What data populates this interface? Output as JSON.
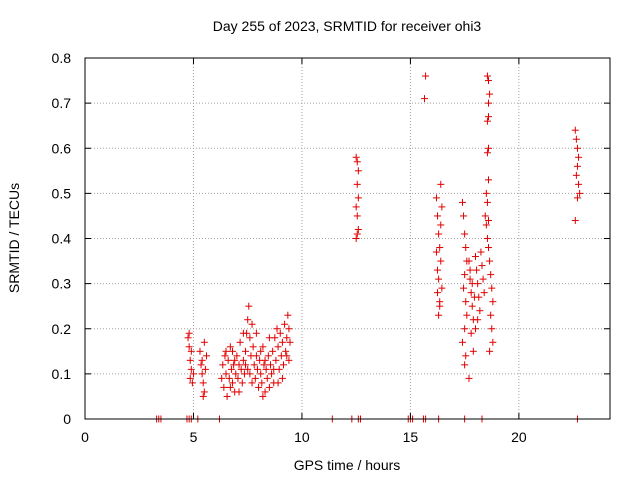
{
  "chart_data": {
    "type": "scatter",
    "title": "Day 255 of 2023, SRMTID for receiver ohi3",
    "xlabel": "GPS time / hours",
    "ylabel": "SRMTID / TECUs",
    "xlim": [
      0,
      24.2
    ],
    "ylim": [
      0,
      0.8
    ],
    "xticks": [
      0,
      5,
      10,
      15,
      20
    ],
    "xtick_labels": [
      "0",
      "5",
      "10",
      "15",
      "20"
    ],
    "yticks": [
      0,
      0.1,
      0.2,
      0.3,
      0.4,
      0.5,
      0.6,
      0.7,
      0.8
    ],
    "ytick_labels": [
      "0",
      "0.1",
      "0.2",
      "0.3",
      "0.4",
      "0.5",
      "0.6",
      "0.7",
      "0.8"
    ],
    "grid": true,
    "marker": "+",
    "color": "#e00000",
    "series": [
      {
        "name": "SRMTID",
        "points": [
          [
            3.3,
            0
          ],
          [
            3.4,
            0
          ],
          [
            3.5,
            0
          ],
          [
            4.7,
            0
          ],
          [
            4.8,
            0
          ],
          [
            4.9,
            0
          ],
          [
            5.2,
            0
          ],
          [
            6.2,
            0
          ],
          [
            11.4,
            0
          ],
          [
            12.3,
            0
          ],
          [
            12.6,
            0
          ],
          [
            12.7,
            0
          ],
          [
            14.9,
            0
          ],
          [
            15.0,
            0
          ],
          [
            15.1,
            0
          ],
          [
            15.6,
            0
          ],
          [
            15.7,
            0
          ],
          [
            16.3,
            0
          ],
          [
            17.5,
            0
          ],
          [
            18.3,
            0
          ],
          [
            22.7,
            0
          ],
          [
            4.8,
            0.19
          ],
          [
            4.8,
            0.16
          ],
          [
            4.85,
            0.13
          ],
          [
            4.9,
            0.15
          ],
          [
            4.9,
            0.11
          ],
          [
            4.95,
            0.08
          ],
          [
            5.0,
            0.1
          ],
          [
            4.75,
            0.18
          ],
          [
            4.85,
            0.09
          ],
          [
            5.3,
            0.15
          ],
          [
            5.35,
            0.12
          ],
          [
            5.4,
            0.1
          ],
          [
            5.45,
            0.08
          ],
          [
            5.5,
            0.06
          ],
          [
            5.55,
            0.11
          ],
          [
            5.5,
            0.17
          ],
          [
            5.6,
            0.14
          ],
          [
            5.45,
            0.05
          ],
          [
            5.4,
            0.13
          ],
          [
            6.3,
            0.09
          ],
          [
            6.35,
            0.12
          ],
          [
            6.4,
            0.07
          ],
          [
            6.45,
            0.14
          ],
          [
            6.5,
            0.1
          ],
          [
            6.55,
            0.05
          ],
          [
            6.6,
            0.13
          ],
          [
            6.65,
            0.09
          ],
          [
            6.7,
            0.16
          ],
          [
            6.75,
            0.11
          ],
          [
            6.8,
            0.08
          ],
          [
            6.85,
            0.12
          ],
          [
            6.9,
            0.06
          ],
          [
            6.95,
            0.1
          ],
          [
            7.0,
            0.14
          ],
          [
            7.05,
            0.09
          ],
          [
            7.1,
            0.12
          ],
          [
            7.15,
            0.17
          ],
          [
            7.2,
            0.11
          ],
          [
            7.25,
            0.08
          ],
          [
            7.3,
            0.13
          ],
          [
            7.35,
            0.1
          ],
          [
            7.4,
            0.15
          ],
          [
            7.45,
            0.19
          ],
          [
            7.5,
            0.22
          ],
          [
            7.55,
            0.25
          ],
          [
            7.6,
            0.18
          ],
          [
            7.65,
            0.14
          ],
          [
            7.7,
            0.21
          ],
          [
            7.75,
            0.16
          ],
          [
            7.8,
            0.12
          ],
          [
            7.85,
            0.09
          ],
          [
            7.9,
            0.14
          ],
          [
            7.95,
            0.11
          ],
          [
            8.0,
            0.07
          ],
          [
            8.05,
            0.13
          ],
          [
            8.1,
            0.1
          ],
          [
            8.15,
            0.08
          ],
          [
            8.2,
            0.16
          ],
          [
            8.25,
            0.12
          ],
          [
            8.3,
            0.06
          ],
          [
            8.35,
            0.11
          ],
          [
            8.4,
            0.09
          ],
          [
            8.45,
            0.14
          ],
          [
            8.5,
            0.07
          ],
          [
            8.55,
            0.12
          ],
          [
            8.6,
            0.1
          ],
          [
            8.65,
            0.15
          ],
          [
            8.7,
            0.08
          ],
          [
            8.75,
            0.18
          ],
          [
            8.8,
            0.13
          ],
          [
            8.85,
            0.2
          ],
          [
            8.9,
            0.16
          ],
          [
            8.95,
            0.11
          ],
          [
            9.0,
            0.19
          ],
          [
            9.05,
            0.14
          ],
          [
            9.1,
            0.17
          ],
          [
            9.15,
            0.12
          ],
          [
            9.2,
            0.21
          ],
          [
            9.25,
            0.15
          ],
          [
            9.3,
            0.18
          ],
          [
            9.35,
            0.23
          ],
          [
            9.4,
            0.13
          ],
          [
            9.45,
            0.17
          ],
          [
            6.5,
            0.15
          ],
          [
            6.7,
            0.07
          ],
          [
            6.9,
            0.13
          ],
          [
            7.1,
            0.06
          ],
          [
            7.3,
            0.19
          ],
          [
            7.5,
            0.11
          ],
          [
            7.7,
            0.08
          ],
          [
            7.9,
            0.19
          ],
          [
            8.1,
            0.15
          ],
          [
            8.3,
            0.13
          ],
          [
            8.5,
            0.18
          ],
          [
            8.7,
            0.11
          ],
          [
            8.9,
            0.08
          ],
          [
            9.1,
            0.09
          ],
          [
            9.3,
            0.14
          ],
          [
            9.4,
            0.2
          ],
          [
            7.6,
            0.1
          ],
          [
            7.4,
            0.12
          ],
          [
            8.2,
            0.05
          ],
          [
            6.8,
            0.15
          ],
          [
            12.5,
            0.58
          ],
          [
            12.55,
            0.57
          ],
          [
            12.6,
            0.55
          ],
          [
            12.55,
            0.52
          ],
          [
            12.6,
            0.49
          ],
          [
            12.5,
            0.47
          ],
          [
            12.55,
            0.45
          ],
          [
            12.6,
            0.42
          ],
          [
            12.55,
            0.41
          ],
          [
            12.5,
            0.4
          ],
          [
            15.7,
            0.76
          ],
          [
            15.65,
            0.71
          ],
          [
            16.2,
            0.49
          ],
          [
            16.25,
            0.45
          ],
          [
            16.3,
            0.41
          ],
          [
            16.35,
            0.38
          ],
          [
            16.4,
            0.35
          ],
          [
            16.3,
            0.31
          ],
          [
            16.25,
            0.28
          ],
          [
            16.35,
            0.25
          ],
          [
            16.3,
            0.23
          ],
          [
            16.4,
            0.52
          ],
          [
            16.45,
            0.47
          ],
          [
            16.4,
            0.43
          ],
          [
            16.2,
            0.37
          ],
          [
            16.25,
            0.33
          ],
          [
            16.45,
            0.29
          ],
          [
            16.35,
            0.26
          ],
          [
            17.4,
            0.48
          ],
          [
            17.45,
            0.45
          ],
          [
            17.5,
            0.41
          ],
          [
            17.55,
            0.38
          ],
          [
            17.6,
            0.35
          ],
          [
            17.5,
            0.32
          ],
          [
            17.45,
            0.29
          ],
          [
            17.55,
            0.26
          ],
          [
            17.6,
            0.23
          ],
          [
            17.5,
            0.2
          ],
          [
            17.4,
            0.17
          ],
          [
            17.55,
            0.14
          ],
          [
            17.5,
            0.12
          ],
          [
            17.7,
            0.35
          ],
          [
            17.75,
            0.31
          ],
          [
            17.8,
            0.28
          ],
          [
            17.85,
            0.25
          ],
          [
            17.9,
            0.22
          ],
          [
            17.8,
            0.19
          ],
          [
            17.9,
            0.15
          ],
          [
            17.7,
            0.09
          ],
          [
            17.75,
            0.33
          ],
          [
            17.85,
            0.3
          ],
          [
            17.95,
            0.27
          ],
          [
            18.0,
            0.36
          ],
          [
            18.05,
            0.33
          ],
          [
            18.1,
            0.3
          ],
          [
            18.15,
            0.27
          ],
          [
            18.2,
            0.24
          ],
          [
            18.25,
            0.37
          ],
          [
            18.3,
            0.34
          ],
          [
            18.35,
            0.31
          ],
          [
            18.4,
            0.28
          ],
          [
            18.45,
            0.45
          ],
          [
            18.5,
            0.43
          ],
          [
            18.55,
            0.4
          ],
          [
            18.6,
            0.38
          ],
          [
            18.65,
            0.35
          ],
          [
            18.7,
            0.32
          ],
          [
            18.75,
            0.29
          ],
          [
            18.8,
            0.26
          ],
          [
            18.5,
            0.5
          ],
          [
            18.55,
            0.48
          ],
          [
            18.6,
            0.44
          ],
          [
            18.7,
            0.23
          ],
          [
            18.75,
            0.2
          ],
          [
            18.8,
            0.17
          ],
          [
            18.65,
            0.15
          ],
          [
            18.0,
            0.2
          ],
          [
            18.1,
            0.22
          ],
          [
            18.55,
            0.76
          ],
          [
            18.6,
            0.75
          ],
          [
            18.65,
            0.72
          ],
          [
            18.6,
            0.7
          ],
          [
            18.6,
            0.67
          ],
          [
            18.55,
            0.66
          ],
          [
            18.6,
            0.6
          ],
          [
            18.55,
            0.59
          ],
          [
            18.6,
            0.53
          ],
          [
            22.6,
            0.64
          ],
          [
            22.65,
            0.62
          ],
          [
            22.7,
            0.6
          ],
          [
            22.75,
            0.58
          ],
          [
            22.7,
            0.56
          ],
          [
            22.65,
            0.54
          ],
          [
            22.75,
            0.52
          ],
          [
            22.8,
            0.5
          ],
          [
            22.7,
            0.49
          ],
          [
            22.6,
            0.44
          ]
        ]
      }
    ]
  }
}
